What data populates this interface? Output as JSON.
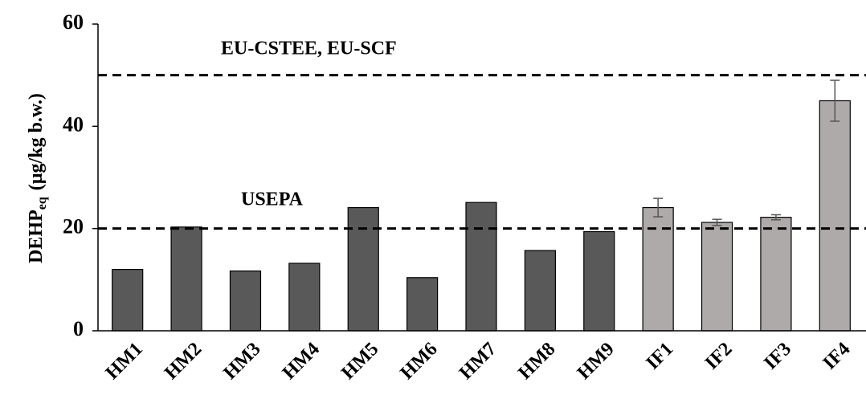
{
  "chart_data": {
    "type": "bar",
    "y_label": "DEHP",
    "y_label_sub": "eq",
    "y_label_unit": "(µg/kg b.w.)",
    "categories": [
      "HM1",
      "HM2",
      "HM3",
      "HM4",
      "HM5",
      "HM6",
      "HM7",
      "HM8",
      "HM9",
      "IF1",
      "IF2",
      "IF3",
      "IF4"
    ],
    "values": [
      12,
      20.3,
      11.7,
      13.2,
      24.1,
      10.4,
      25.1,
      15.7,
      19.4,
      24.1,
      21.2,
      22.2,
      45
    ],
    "errors": [
      null,
      null,
      null,
      null,
      null,
      null,
      null,
      null,
      null,
      1.8,
      0.6,
      0.5,
      4
    ],
    "colors": [
      "#595959",
      "#595959",
      "#595959",
      "#595959",
      "#595959",
      "#595959",
      "#595959",
      "#595959",
      "#595959",
      "#aeaaaa",
      "#aeaaaa",
      "#aeaaaa",
      "#aeaaaa"
    ],
    "reference_lines": [
      {
        "value": 50,
        "label": "EU-CSTEE,  EU-SCF"
      },
      {
        "value": 20,
        "label": "USEPA"
      }
    ],
    "ylim": [
      0,
      60
    ],
    "yticks": [
      0,
      20,
      40,
      60
    ]
  }
}
